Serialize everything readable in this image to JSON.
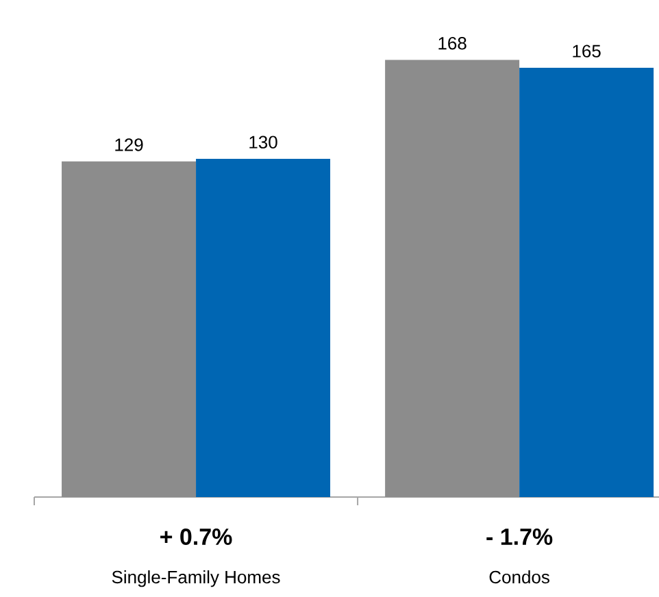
{
  "chart_data": {
    "type": "bar",
    "categories": [
      "Single-Family Homes",
      "Condos"
    ],
    "series": [
      {
        "color": "#8c8c8c",
        "values": [
          129,
          168
        ]
      },
      {
        "color": "#0066b3",
        "values": [
          130,
          165
        ]
      }
    ],
    "data_labels": true,
    "annotations": [
      "+ 0.7%",
      "- 1.7%"
    ]
  }
}
